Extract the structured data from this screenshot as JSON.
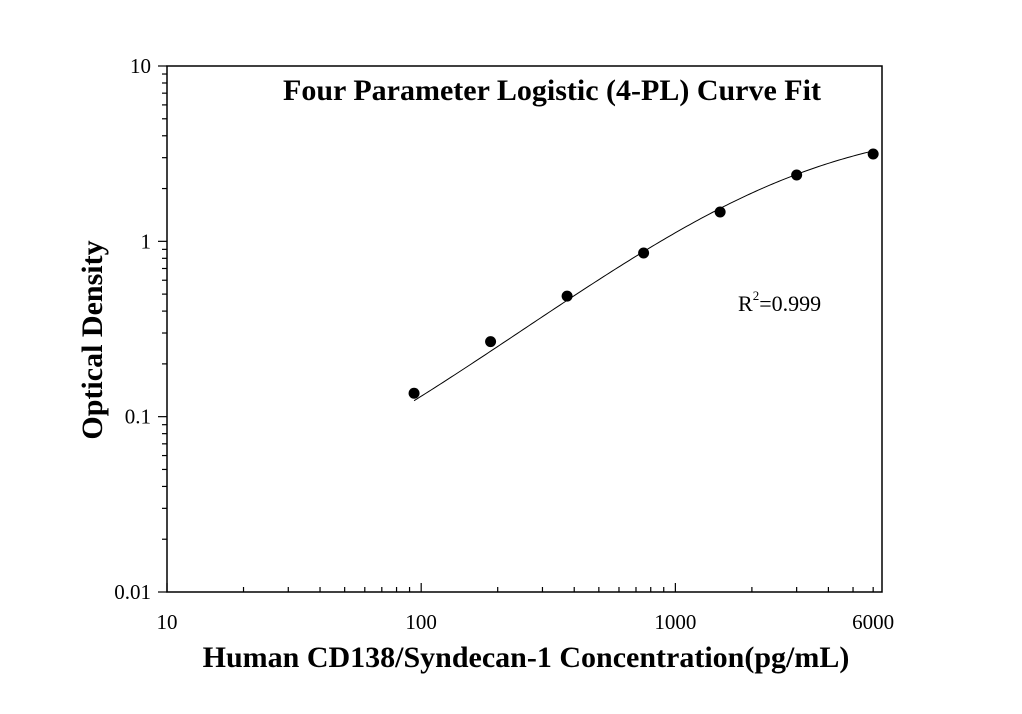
{
  "chart_data": {
    "type": "scatter",
    "title": "Four Parameter Logistic (4-PL) Curve Fit",
    "xlabel": "Human CD138/Syndecan-1 Concentration(pg/mL)",
    "ylabel": "Optical Density",
    "x_scale": "log",
    "y_scale": "log",
    "xlim": [
      10,
      6500
    ],
    "ylim": [
      0.01,
      10
    ],
    "x_ticks": [
      10,
      100,
      1000,
      6000
    ],
    "x_tick_labels": [
      "10",
      "100",
      "1000",
      "6000"
    ],
    "y_ticks": [
      0.01,
      0.1,
      1,
      10
    ],
    "y_tick_labels": [
      "0.01",
      "0.1",
      "1",
      "10"
    ],
    "grid": false,
    "series": [
      {
        "x": [
          93.75,
          187.5,
          375,
          750,
          1500,
          3000,
          6000
        ],
        "y": [
          0.136,
          0.268,
          0.487,
          0.858,
          1.47,
          2.39,
          3.15
        ]
      }
    ],
    "fit_curve": {
      "model": "4-PL",
      "x_range": [
        93.75,
        6000
      ],
      "params": {
        "a": 0.02,
        "b": 1.1,
        "c": 3000,
        "d": 4.8
      }
    },
    "annotation": {
      "base": "R",
      "sup": "2",
      "rest": "=0.999"
    }
  }
}
